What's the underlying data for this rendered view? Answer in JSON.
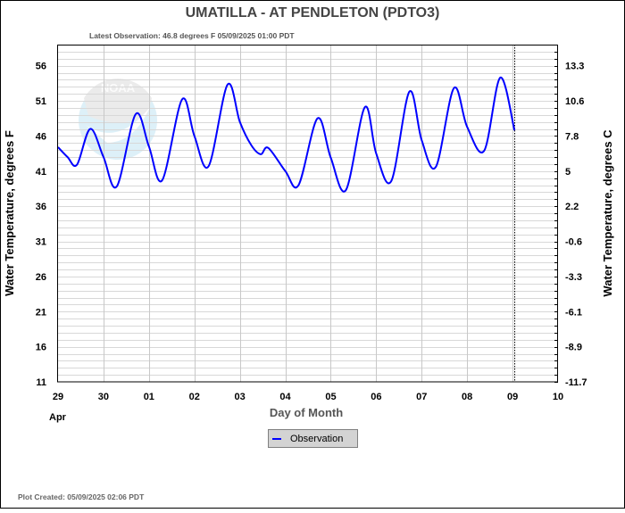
{
  "chart_data": {
    "type": "line",
    "title": "UMATILLA - AT PENDLETON  (PDTO3)",
    "subtitle": "Latest Observation: 46.8 degrees F 05/09/2025 01:00 PDT",
    "xlabel": "Day of Month",
    "x_month_label": "Apr",
    "ylabel": "Water Temperature, degrees F",
    "ylabel_right": "Water Temperature, degrees C",
    "x_tick_labels": [
      "29",
      "30",
      "01",
      "02",
      "03",
      "04",
      "05",
      "06",
      "07",
      "08",
      "09",
      "10"
    ],
    "x_range": [
      "2025-04-29 00:00",
      "2025-05-10 00:00"
    ],
    "y_tick_labels": [
      "56",
      "51",
      "46",
      "41",
      "36",
      "31",
      "26",
      "21",
      "16",
      "11"
    ],
    "y_right_tick_labels": [
      "13.3",
      "10.6",
      "7.8",
      "5",
      "2.2",
      "-0.6",
      "-3.3",
      "-6.1",
      "-8.9",
      "-11.7"
    ],
    "ylim": [
      11,
      59
    ],
    "grid": true,
    "latest_marker": "2025-05-09 01:00",
    "legend_placement": "bottom",
    "series": [
      {
        "name": "Observation",
        "color": "#0000ff",
        "points": [
          [
            "2025-04-29 00:00",
            44.4
          ],
          [
            "2025-04-29 05:00",
            43.0
          ],
          [
            "2025-04-29 10:00",
            41.9
          ],
          [
            "2025-04-29 17:00",
            47.0
          ],
          [
            "2025-04-30 00:00",
            43.0
          ],
          [
            "2025-04-30 07:00",
            38.8
          ],
          [
            "2025-04-30 17:00",
            49.1
          ],
          [
            "2025-05-01 00:00",
            44.5
          ],
          [
            "2025-05-01 07:00",
            39.7
          ],
          [
            "2025-05-01 17:30",
            51.2
          ],
          [
            "2025-05-02 00:00",
            46.0
          ],
          [
            "2025-05-02 07:30",
            41.7
          ],
          [
            "2025-05-02 17:30",
            53.3
          ],
          [
            "2025-05-03 00:00",
            48.0
          ],
          [
            "2025-05-03 06:00",
            44.7
          ],
          [
            "2025-05-03 11:00",
            43.4
          ],
          [
            "2025-05-03 15:00",
            44.3
          ],
          [
            "2025-05-04 00:00",
            41.0
          ],
          [
            "2025-05-04 07:00",
            39.0
          ],
          [
            "2025-05-04 17:00",
            48.5
          ],
          [
            "2025-05-05 00:00",
            42.9
          ],
          [
            "2025-05-05 08:00",
            38.3
          ],
          [
            "2025-05-05 18:00",
            50.1
          ],
          [
            "2025-05-06 00:00",
            43.5
          ],
          [
            "2025-05-06 08:00",
            39.6
          ],
          [
            "2025-05-06 17:30",
            52.3
          ],
          [
            "2025-05-07 00:00",
            45.4
          ],
          [
            "2025-05-07 07:30",
            41.6
          ],
          [
            "2025-05-07 17:00",
            52.8
          ],
          [
            "2025-05-08 00:00",
            47.3
          ],
          [
            "2025-05-08 09:00",
            43.9
          ],
          [
            "2025-05-08 17:30",
            54.3
          ],
          [
            "2025-05-09 01:00",
            46.8
          ]
        ]
      }
    ]
  },
  "footer": "Plot Created: 05/09/2025 02:06 PDT",
  "watermark": "NOAA"
}
